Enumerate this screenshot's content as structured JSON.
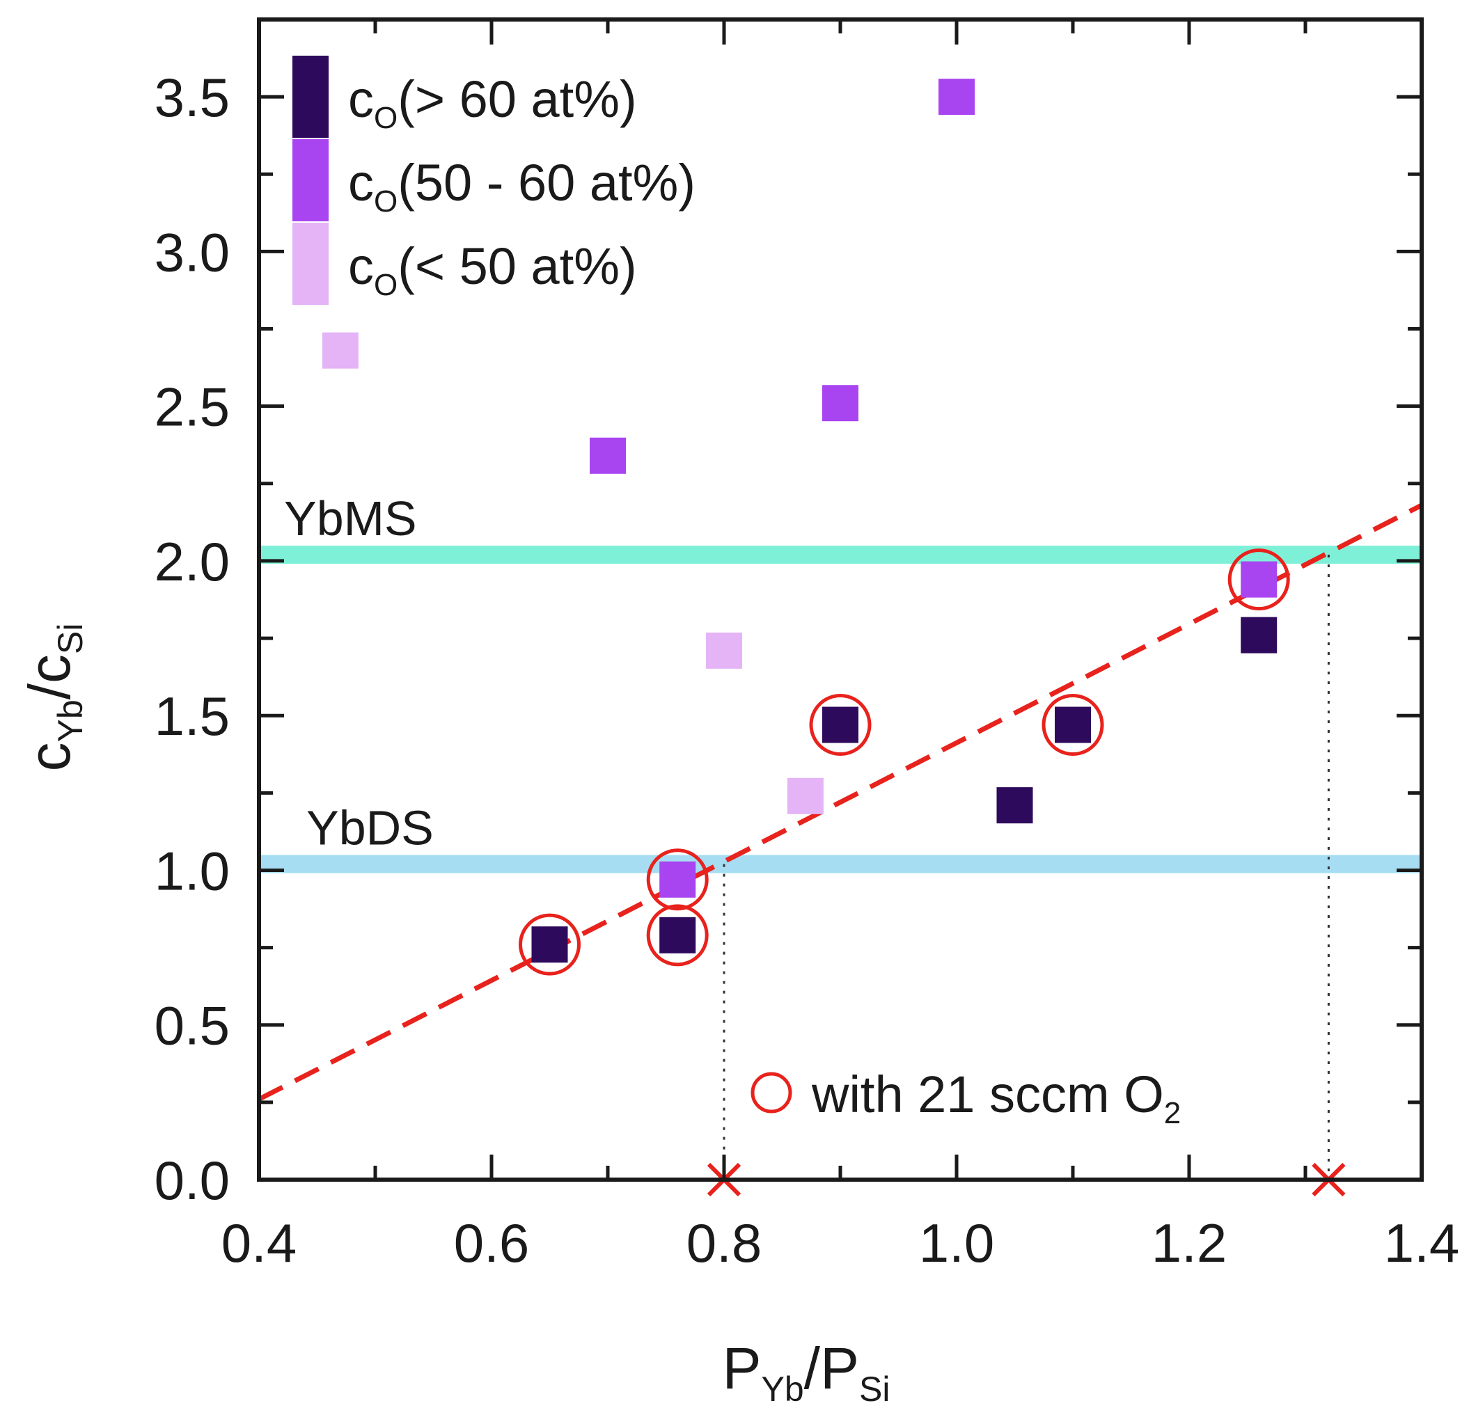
{
  "chart_data": {
    "type": "scatter",
    "xlabel": {
      "main": "P",
      "sub1": "Yb",
      "sep": "/P",
      "sub2": "Si"
    },
    "ylabel": {
      "main": "c",
      "sub1": "Yb",
      "sep": "/c",
      "sub2": "Si"
    },
    "xlim": [
      0.4,
      1.4
    ],
    "ylim": [
      0.0,
      3.75
    ],
    "x_ticks": [
      "0.4",
      "0.6",
      "0.8",
      "1.0",
      "1.2",
      "1.4"
    ],
    "x_tick_values": [
      0.4,
      0.6,
      0.8,
      1.0,
      1.2,
      1.4
    ],
    "y_ticks": [
      "0.0",
      "0.5",
      "1.0",
      "1.5",
      "2.0",
      "2.5",
      "3.0",
      "3.5"
    ],
    "y_tick_values": [
      0.0,
      0.5,
      1.0,
      1.5,
      2.0,
      2.5,
      3.0,
      3.5
    ],
    "grid": false,
    "legend_position": "top-left",
    "series": [
      {
        "name_prefix": "c",
        "name_sub": "O",
        "name_suffix": "(> 60 at%)",
        "color": "#2e0a5c",
        "points": [
          [
            0.65,
            0.76
          ],
          [
            0.76,
            0.79
          ],
          [
            0.9,
            1.47
          ],
          [
            1.05,
            1.21
          ],
          [
            1.1,
            1.47
          ],
          [
            1.26,
            1.76
          ]
        ]
      },
      {
        "name_prefix": "c",
        "name_sub": "O",
        "name_suffix": "(50 - 60 at%)",
        "color": "#a845f0",
        "points": [
          [
            1.0,
            3.5
          ],
          [
            0.9,
            2.51
          ],
          [
            0.7,
            2.34
          ],
          [
            1.26,
            1.94
          ],
          [
            0.76,
            0.97
          ]
        ]
      },
      {
        "name_prefix": "c",
        "name_sub": "O",
        "name_suffix": "(< 50 at%)",
        "color": "#e4b4f6",
        "points": [
          [
            0.47,
            2.68
          ],
          [
            0.8,
            1.71
          ],
          [
            0.87,
            1.24
          ]
        ]
      }
    ],
    "circled": {
      "label_prefix": "with 21 sccm O",
      "label_sub": "2",
      "color": "#e8221c",
      "points": [
        [
          0.65,
          0.76
        ],
        [
          0.76,
          0.97
        ],
        [
          0.76,
          0.79
        ],
        [
          0.9,
          1.47
        ],
        [
          1.1,
          1.47
        ],
        [
          1.26,
          1.94
        ]
      ]
    },
    "bands": [
      {
        "label": "YbMS",
        "y": 2.02,
        "color": "#7ef0d8"
      },
      {
        "label": "YbDS",
        "y": 1.02,
        "color": "#a6ddf3"
      }
    ],
    "fit_line": {
      "color": "#e8221c",
      "x": [
        0.4,
        1.4
      ],
      "y": [
        0.26,
        2.18
      ]
    },
    "intercepts": {
      "color": "#e8221c",
      "points": [
        {
          "x": 0.8,
          "y": 1.02
        },
        {
          "x": 1.32,
          "y": 2.02
        }
      ]
    }
  }
}
